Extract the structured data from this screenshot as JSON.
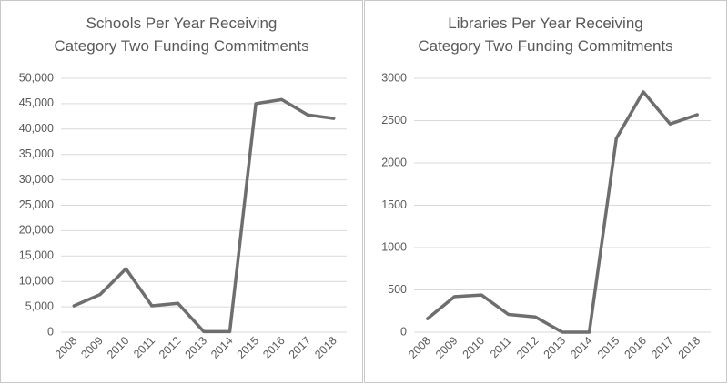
{
  "chart_data": [
    {
      "type": "line",
      "title": "Schools Per Year Receiving Category Two Funding Commitments",
      "title_lines": [
        "Schools Per Year Receiving",
        "Category Two Funding Commitments"
      ],
      "categories": [
        "2008",
        "2009",
        "2010",
        "2011",
        "2012",
        "2013",
        "2014",
        "2015",
        "2016",
        "2017",
        "2018"
      ],
      "values": [
        5200,
        7400,
        12500,
        5200,
        5700,
        100,
        100,
        45000,
        45800,
        42800,
        42100
      ],
      "ylim": [
        0,
        50000
      ],
      "yticks": [
        0,
        5000,
        10000,
        15000,
        20000,
        25000,
        30000,
        35000,
        40000,
        45000,
        50000
      ],
      "ytick_labels": [
        "0",
        "5,000",
        "10,000",
        "15,000",
        "20,000",
        "25,000",
        "30,000",
        "35,000",
        "40,000",
        "45,000",
        "50,000"
      ],
      "grid": true,
      "series_color": "#6e6e6e"
    },
    {
      "type": "line",
      "title": "Libraries Per Year Receiving Category Two Funding Commitments",
      "title_lines": [
        "Libraries Per Year Receiving",
        "Category Two Funding Commitments"
      ],
      "categories": [
        "2008",
        "2009",
        "2010",
        "2011",
        "2012",
        "2013",
        "2014",
        "2015",
        "2016",
        "2017",
        "2018"
      ],
      "values": [
        160,
        420,
        440,
        210,
        180,
        0,
        0,
        2290,
        2840,
        2460,
        2570
      ],
      "ylim": [
        0,
        3000
      ],
      "yticks": [
        0,
        500,
        1000,
        1500,
        2000,
        2500,
        3000
      ],
      "ytick_labels": [
        "0",
        "500",
        "1000",
        "1500",
        "2000",
        "2500",
        "3000"
      ],
      "grid": true,
      "series_color": "#6e6e6e"
    }
  ]
}
